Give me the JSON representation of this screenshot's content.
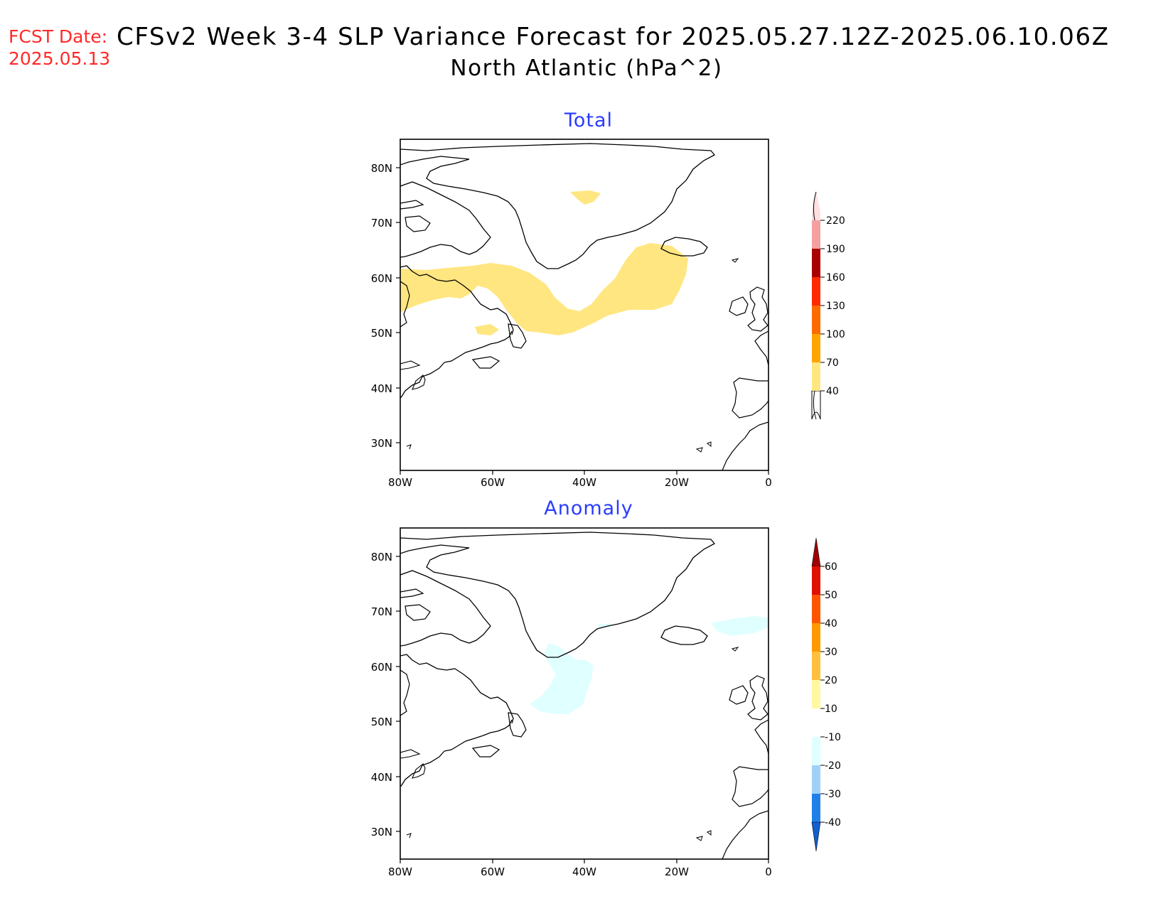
{
  "header": {
    "fcst_label": "FCST Date:",
    "fcst_date": "2025.05.13",
    "title_line1": "CFSv2 Week 3-4 SLP Variance Forecast for 2025.05.27.12Z-2025.06.10.06Z",
    "title_line2": "North Atlantic (hPa^2)"
  },
  "panels": [
    {
      "title": "Total",
      "lat_labels": [
        "80N",
        "70N",
        "60N",
        "50N",
        "40N",
        "30N"
      ],
      "lon_labels": [
        "80W",
        "60W",
        "40W",
        "20W",
        "0"
      ],
      "colorbar": {
        "levels": [
          "40",
          "70",
          "100",
          "130",
          "160",
          "190",
          "220"
        ],
        "colors": [
          "#ffe680",
          "#ffa500",
          "#ff6a00",
          "#ff2a00",
          "#dd1100",
          "#aa0000",
          "#f4a0a0",
          "#ffe0e0"
        ]
      },
      "shaded_regions": [
        {
          "range": "40-70",
          "color": "#ffe680"
        }
      ]
    },
    {
      "title": "Anomaly",
      "lat_labels": [
        "80N",
        "70N",
        "60N",
        "50N",
        "40N",
        "30N"
      ],
      "lon_labels": [
        "80W",
        "60W",
        "40W",
        "20W",
        "0"
      ],
      "colorbar": {
        "levels": [
          "60",
          "50",
          "40",
          "30",
          "20",
          "10",
          "-10",
          "-20",
          "-30",
          "-40"
        ],
        "colors": [
          "#a00000",
          "#e01000",
          "#ff5500",
          "#ff9900",
          "#ffc040",
          "#fff8a0",
          "#ffffff",
          "#e0ffff",
          "#a0d0f8",
          "#5aa8f0",
          "#2080e8",
          "#1060d0"
        ]
      },
      "shaded_regions": [
        {
          "range": "-20 to -10",
          "color": "#e0ffff"
        }
      ]
    }
  ]
}
